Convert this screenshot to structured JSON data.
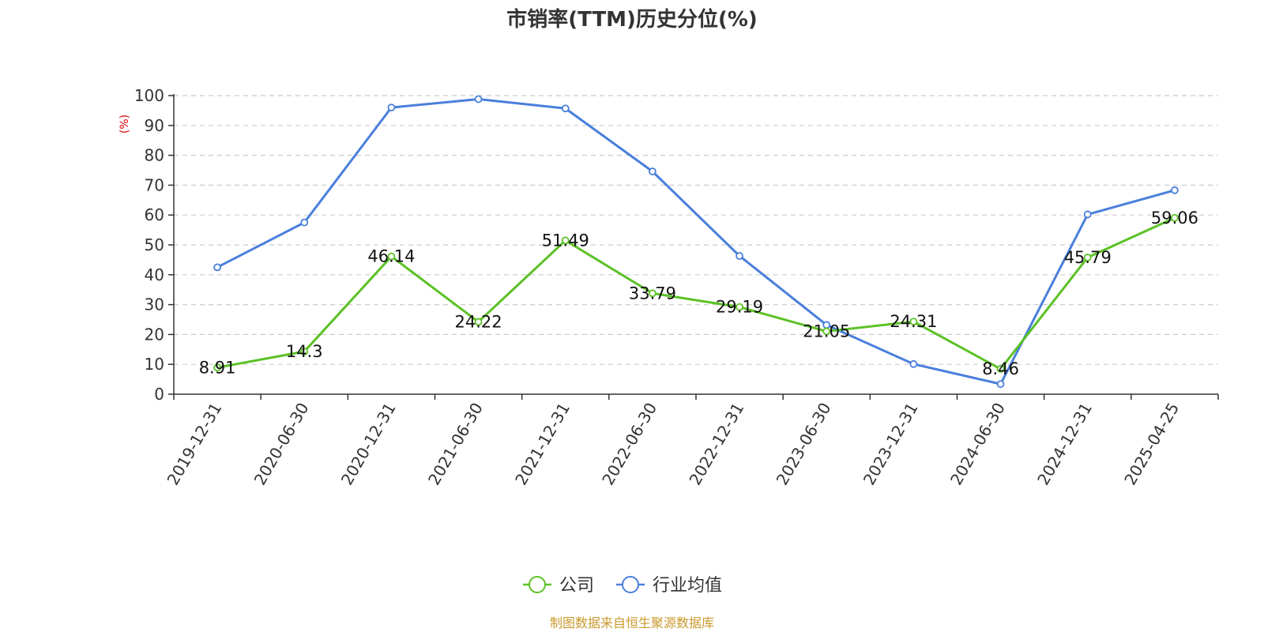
{
  "title": "市销率(TTM)历史分位(%)",
  "source": "制图数据来自恒生聚源数据库",
  "chart_data": {
    "type": "line",
    "title": "市销率(TTM)历史分位(%)",
    "ylabel": "(%)",
    "ylim": [
      0,
      100
    ],
    "yticks": [
      0,
      10,
      20,
      30,
      40,
      50,
      60,
      70,
      80,
      90,
      100
    ],
    "grid": true,
    "legend_position": "bottom-center",
    "categories": [
      "2019-12-31",
      "2020-06-30",
      "2020-12-31",
      "2021-06-30",
      "2021-12-31",
      "2022-06-30",
      "2022-12-31",
      "2023-06-30",
      "2023-12-31",
      "2024-06-30",
      "2024-12-31",
      "2025-04-25"
    ],
    "series": [
      {
        "name": "公司",
        "color": "#5cc126",
        "show_labels": true,
        "values": [
          8.91,
          14.3,
          46.14,
          24.22,
          51.49,
          33.79,
          29.19,
          21.05,
          24.31,
          8.46,
          45.79,
          59.06
        ],
        "labels": [
          "8.91",
          "14.3",
          "46.14",
          "24.22",
          "51.49",
          "33.79",
          "29.19",
          "21.05",
          "24.31",
          "8.46",
          "45.79",
          "59.06"
        ]
      },
      {
        "name": "行业均值",
        "color": "#4a7fdc",
        "show_labels": false,
        "values": [
          42.5,
          57.5,
          96.0,
          98.8,
          95.7,
          74.6,
          46.3,
          23.2,
          10.1,
          3.4,
          60.2,
          68.3
        ]
      }
    ]
  }
}
